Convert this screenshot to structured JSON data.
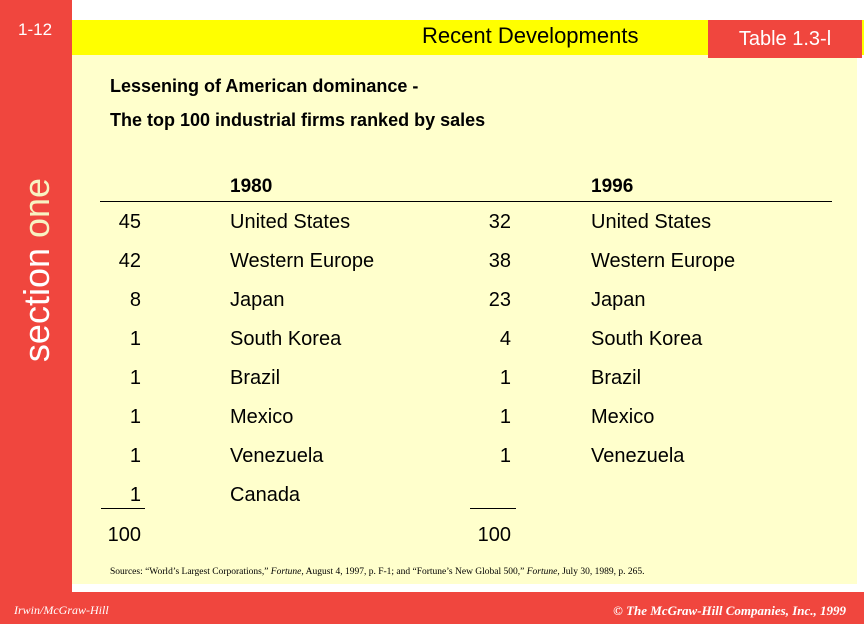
{
  "slide_number": "1-12",
  "section": {
    "prefix": "section ",
    "word": "one"
  },
  "header": {
    "title": "Recent Developments",
    "badge": "Table 1.3-l"
  },
  "subtitle": {
    "line1": "Lessening of American dominance -",
    "line2": "The top 100 industrial firms ranked by sales"
  },
  "table": {
    "years": [
      "1980",
      "1996"
    ],
    "rows": [
      {
        "n1980": "45",
        "c1980": "United States",
        "n1996": "32",
        "c1996": "United States"
      },
      {
        "n1980": "42",
        "c1980": "Western Europe",
        "n1996": "38",
        "c1996": "Western Europe"
      },
      {
        "n1980": "8",
        "c1980": "Japan",
        "n1996": "23",
        "c1996": "Japan"
      },
      {
        "n1980": "1",
        "c1980": "South Korea",
        "n1996": "4",
        "c1996": "South Korea"
      },
      {
        "n1980": "1",
        "c1980": "Brazil",
        "n1996": "1",
        "c1996": "Brazil"
      },
      {
        "n1980": "1",
        "c1980": "Mexico",
        "n1996": "1",
        "c1996": "Mexico"
      },
      {
        "n1980": "1",
        "c1980": "Venezuela",
        "n1996": "1",
        "c1996": "Venezuela"
      },
      {
        "n1980": "1",
        "c1980": "Canada",
        "n1996": "",
        "c1996": ""
      }
    ],
    "totals": {
      "t1980": "100",
      "t1996": "100"
    }
  },
  "sources": {
    "p1": "Sources: “World’s Largest Corporations,” ",
    "i1": "Fortune",
    "p2": ", August 4, 1997, p. F-1; and “Fortune’s New Global 500,” ",
    "i2": "Fortune",
    "p3": ", July 30, 1989, p. 265."
  },
  "footer": {
    "left": "Irwin/McGraw-Hill",
    "right": "© The McGraw-Hill Companies, Inc., 1999"
  },
  "colors": {
    "accent_red": "#f0463e",
    "stripe_yellow": "#ffff00",
    "panel_cream": "#ffffcc"
  }
}
